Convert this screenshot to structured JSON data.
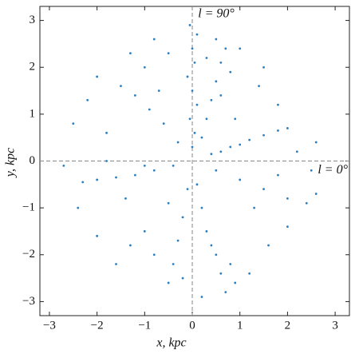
{
  "chart_data": {
    "type": "scatter",
    "x_label": "x, kpc",
    "y_label": "y, kpc",
    "annotations": [
      "l = 90°",
      "l = 0°"
    ],
    "color": "#2b7fc0",
    "xlim": [
      -3.2,
      3.3
    ],
    "ylim": [
      -3.3,
      3.3
    ],
    "xticks": [
      {
        "value": -3,
        "label": "−3"
      },
      {
        "value": -2,
        "label": "−2"
      },
      {
        "value": -1,
        "label": "−1"
      },
      0,
      1,
      2,
      3
    ],
    "yticks": [
      {
        "value": -3,
        "label": "−3"
      },
      {
        "value": -2,
        "label": "−2"
      },
      {
        "value": -1,
        "label": "−1"
      },
      0,
      1,
      2,
      3
    ],
    "series": [
      {
        "x": [
          0,
          0.05,
          -0.05,
          0.1,
          0,
          -0.1,
          0.05,
          0,
          0.1,
          -0.05,
          0.2,
          0.3,
          0.4,
          0.5,
          0.6,
          0.7,
          0.5,
          0.3,
          0.8,
          0.6,
          0.4,
          0.8,
          1.2,
          1.5,
          1.8,
          2.0,
          1.0,
          0.6,
          0.5,
          1.0,
          1.5,
          2.0,
          2.4,
          1.8,
          2.5,
          2.2,
          2.6,
          -0.4,
          -0.8,
          -1.2,
          -1.6,
          -2.0,
          -2.3,
          -1.0,
          -1.8,
          0.1,
          0.2,
          0.3,
          0.5,
          0.6,
          0.7,
          0.4,
          0.8,
          0.9,
          0.2,
          -0.1,
          -0.2,
          -0.3,
          -0.4,
          -0.5,
          -0.8,
          -1.0,
          -1.3,
          -1.6,
          -0.3,
          -0.6,
          -0.9,
          -1.2,
          -1.5,
          -0.7,
          -1.0,
          -0.5,
          -0.8,
          -1.3,
          -2.5,
          -2.2,
          -2.7,
          -2.4,
          -2.0,
          1.2,
          1.6,
          2.0,
          2.6,
          1.4,
          1.0,
          1.8,
          -1.8,
          -2.0,
          -0.2,
          1.3,
          0.9,
          -0.5,
          -1.4,
          1.5
        ],
        "values": [
          0.3,
          0.6,
          0.9,
          1.2,
          1.5,
          1.8,
          2.1,
          2.4,
          2.7,
          2.9,
          0.5,
          0.9,
          1.3,
          1.7,
          2.1,
          2.4,
          2.6,
          2.2,
          1.9,
          1.4,
          0.15,
          0.3,
          0.45,
          0.55,
          0.65,
          0.7,
          0.35,
          0.2,
          -0.2,
          -0.4,
          -0.6,
          -0.8,
          -0.9,
          -0.3,
          -0.2,
          0.2,
          0.4,
          -0.1,
          -0.2,
          -0.3,
          -0.35,
          -0.4,
          -0.45,
          -0.1,
          0.0,
          -0.5,
          -1.0,
          -1.5,
          -2.0,
          -2.4,
          -2.8,
          -1.8,
          -2.2,
          -2.6,
          -2.9,
          -0.6,
          -1.2,
          -1.7,
          -2.2,
          -2.6,
          -2.0,
          -1.5,
          -1.8,
          -2.2,
          0.4,
          0.8,
          1.1,
          1.4,
          1.6,
          1.5,
          2.0,
          2.3,
          2.6,
          2.3,
          0.8,
          1.3,
          -0.1,
          -1.0,
          -1.6,
          -2.4,
          -1.8,
          -1.4,
          -0.7,
          1.6,
          2.4,
          1.2,
          0.6,
          1.8,
          -2.5,
          -1.0,
          0.9,
          -0.9,
          -0.8,
          2.0
        ]
      }
    ]
  }
}
